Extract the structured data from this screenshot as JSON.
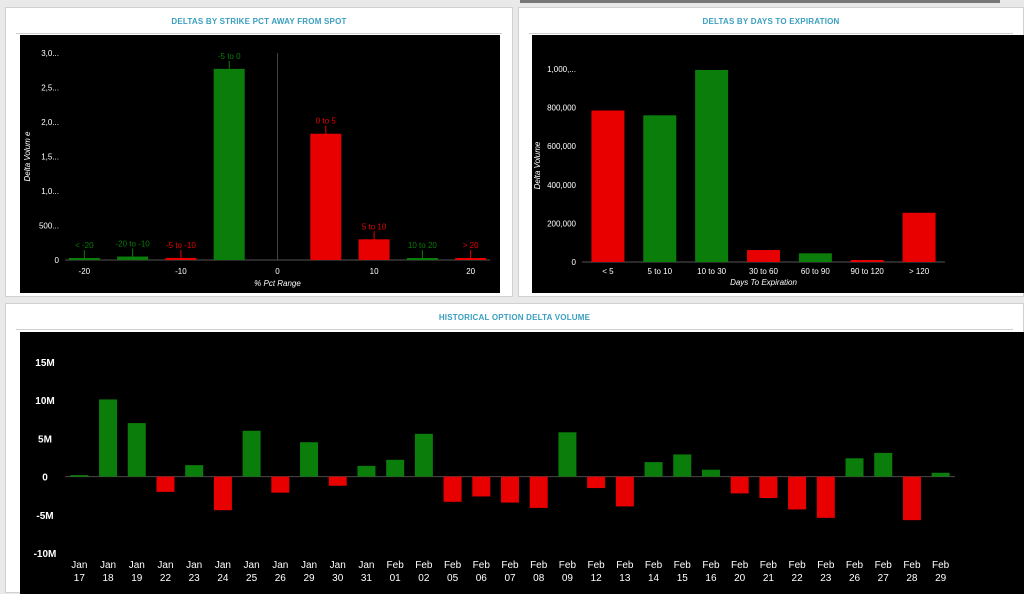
{
  "colors": {
    "positive": "#0b7d0b",
    "negative": "#e80000",
    "title": "#3a9fc0",
    "background": "#000000"
  },
  "panels": {
    "strike": {
      "title": "DELTAS BY STRIKE PCT AWAY FROM SPOT"
    },
    "days": {
      "title": "DELTAS BY DAYS TO EXPIRATION"
    },
    "historical": {
      "title": "HISTORICAL OPTION DELTA VOLUME"
    }
  },
  "chart_data": [
    {
      "type": "bar",
      "xlabel": "% Pct Range",
      "ylabel": "Delta Volum e",
      "ylim": [
        0,
        3000000
      ],
      "xlim": [
        -22,
        22
      ],
      "y_ticks": [
        {
          "v": 0,
          "t": "0"
        },
        {
          "v": 500000,
          "t": "500..."
        },
        {
          "v": 1000000,
          "t": "1,0..."
        },
        {
          "v": 1500000,
          "t": "1,5..."
        },
        {
          "v": 2000000,
          "t": "2,0..."
        },
        {
          "v": 2500000,
          "t": "2,5..."
        },
        {
          "v": 3000000,
          "t": "3,0..."
        }
      ],
      "x_ticks": [
        {
          "v": -20,
          "t": "-20"
        },
        {
          "v": -10,
          "t": "-10"
        },
        {
          "v": 0,
          "t": "0"
        },
        {
          "v": 10,
          "t": "10"
        },
        {
          "v": 20,
          "t": "20"
        }
      ],
      "bars": [
        {
          "label": "< -20",
          "x": -20,
          "value": 10000,
          "sign": "pos"
        },
        {
          "label": "-20 to -10",
          "x": -15,
          "value": 50000,
          "sign": "pos"
        },
        {
          "label": "-5 to -10",
          "x": -10,
          "value": 30000,
          "sign": "neg"
        },
        {
          "label": "-5 to 0",
          "x": -5,
          "value": 2770000,
          "sign": "pos"
        },
        {
          "label": "0 to 5",
          "x": 5,
          "value": 1830000,
          "sign": "neg"
        },
        {
          "label": "5 to 10",
          "x": 10,
          "value": 300000,
          "sign": "neg"
        },
        {
          "label": "10 to 20",
          "x": 15,
          "value": 20000,
          "sign": "pos"
        },
        {
          "label": "> 20",
          "x": 20,
          "value": 5000,
          "sign": "neg"
        }
      ]
    },
    {
      "type": "bar",
      "xlabel": "Days To Expiration",
      "ylabel": "Delta Volume",
      "ylim": [
        0,
        1000000
      ],
      "y_ticks": [
        {
          "v": 0,
          "t": "0"
        },
        {
          "v": 200000,
          "t": "200,000"
        },
        {
          "v": 400000,
          "t": "400,000"
        },
        {
          "v": 600000,
          "t": "600,000"
        },
        {
          "v": 800000,
          "t": "800,000"
        },
        {
          "v": 1000000,
          "t": "1,000,..."
        }
      ],
      "categories": [
        "< 5",
        "5 to 10",
        "10 to 30",
        "30 to 60",
        "60 to 90",
        "90 to 120",
        "> 120"
      ],
      "values": [
        785000,
        760000,
        995000,
        62000,
        45000,
        5000,
        255000
      ],
      "signs": [
        "neg",
        "pos",
        "pos",
        "neg",
        "pos",
        "neg",
        "neg"
      ]
    },
    {
      "type": "bar",
      "ylim": [
        -10000000,
        15000000
      ],
      "y_ticks": [
        {
          "v": -10000000,
          "t": "-10M"
        },
        {
          "v": -5000000,
          "t": "-5M"
        },
        {
          "v": 0,
          "t": "0"
        },
        {
          "v": 5000000,
          "t": "5M"
        },
        {
          "v": 10000000,
          "t": "10M"
        },
        {
          "v": 15000000,
          "t": "15M"
        }
      ],
      "categories": [
        [
          "Jan",
          "17"
        ],
        [
          "Jan",
          "18"
        ],
        [
          "Jan",
          "19"
        ],
        [
          "Jan",
          "22"
        ],
        [
          "Jan",
          "23"
        ],
        [
          "Jan",
          "24"
        ],
        [
          "Jan",
          "25"
        ],
        [
          "Jan",
          "26"
        ],
        [
          "Jan",
          "29"
        ],
        [
          "Jan",
          "30"
        ],
        [
          "Jan",
          "31"
        ],
        [
          "Feb",
          "01"
        ],
        [
          "Feb",
          "02"
        ],
        [
          "Feb",
          "05"
        ],
        [
          "Feb",
          "06"
        ],
        [
          "Feb",
          "07"
        ],
        [
          "Feb",
          "08"
        ],
        [
          "Feb",
          "09"
        ],
        [
          "Feb",
          "12"
        ],
        [
          "Feb",
          "13"
        ],
        [
          "Feb",
          "14"
        ],
        [
          "Feb",
          "15"
        ],
        [
          "Feb",
          "16"
        ],
        [
          "Feb",
          "20"
        ],
        [
          "Feb",
          "21"
        ],
        [
          "Feb",
          "22"
        ],
        [
          "Feb",
          "23"
        ],
        [
          "Feb",
          "26"
        ],
        [
          "Feb",
          "27"
        ],
        [
          "Feb",
          "28"
        ],
        [
          "Feb",
          "29"
        ]
      ],
      "values": [
        200000,
        10100000,
        7000000,
        -2000000,
        1500000,
        -4400000,
        6000000,
        -2100000,
        4500000,
        -1200000,
        1400000,
        2200000,
        5600000,
        -3300000,
        -2600000,
        -3400000,
        -4100000,
        5800000,
        -1500000,
        -3900000,
        1900000,
        2900000,
        900000,
        -2200000,
        -2800000,
        -4300000,
        -5400000,
        2400000,
        3100000,
        -5700000,
        500000
      ]
    }
  ]
}
